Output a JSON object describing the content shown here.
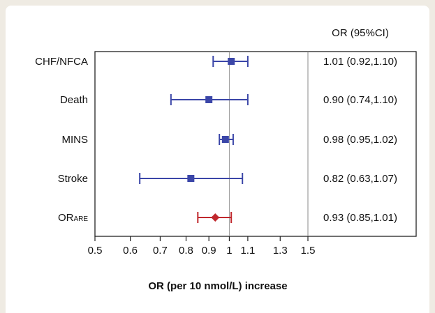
{
  "chart_data": {
    "type": "forest",
    "col_header": "OR (95%CI)",
    "xlabel": "OR (per 10 nmol/L) increase",
    "x_scale": "log",
    "x_ticks": [
      0.5,
      0.6,
      0.7,
      0.8,
      0.9,
      1,
      1.1,
      1.3,
      1.5
    ],
    "x_tick_labels": [
      "0.5",
      "0.6",
      "0.7",
      "0.8",
      "0.9",
      "1",
      "1.1",
      "1.3",
      "1.5"
    ],
    "reference_line": 1,
    "colors": {
      "outcome": "#3b46a8",
      "pooled": "#c0282d"
    },
    "rows": [
      {
        "label": "CHF/NFCA",
        "or": 1.01,
        "lo": 0.92,
        "hi": 1.1,
        "ci_text": "1.01 (0.92,1.10)",
        "pooled": false
      },
      {
        "label": "Death",
        "or": 0.9,
        "lo": 0.74,
        "hi": 1.1,
        "ci_text": "0.90 (0.74,1.10)",
        "pooled": false
      },
      {
        "label": "MINS",
        "or": 0.98,
        "lo": 0.95,
        "hi": 1.02,
        "ci_text": "0.98 (0.95,1.02)",
        "pooled": false
      },
      {
        "label": "Stroke",
        "or": 0.82,
        "lo": 0.63,
        "hi": 1.07,
        "ci_text": "0.82 (0.63,1.07)",
        "pooled": false
      },
      {
        "label": "OR",
        "label_sub": "ARE",
        "or": 0.93,
        "lo": 0.85,
        "hi": 1.01,
        "ci_text": "0.93 (0.85,1.01)",
        "pooled": true
      }
    ]
  }
}
